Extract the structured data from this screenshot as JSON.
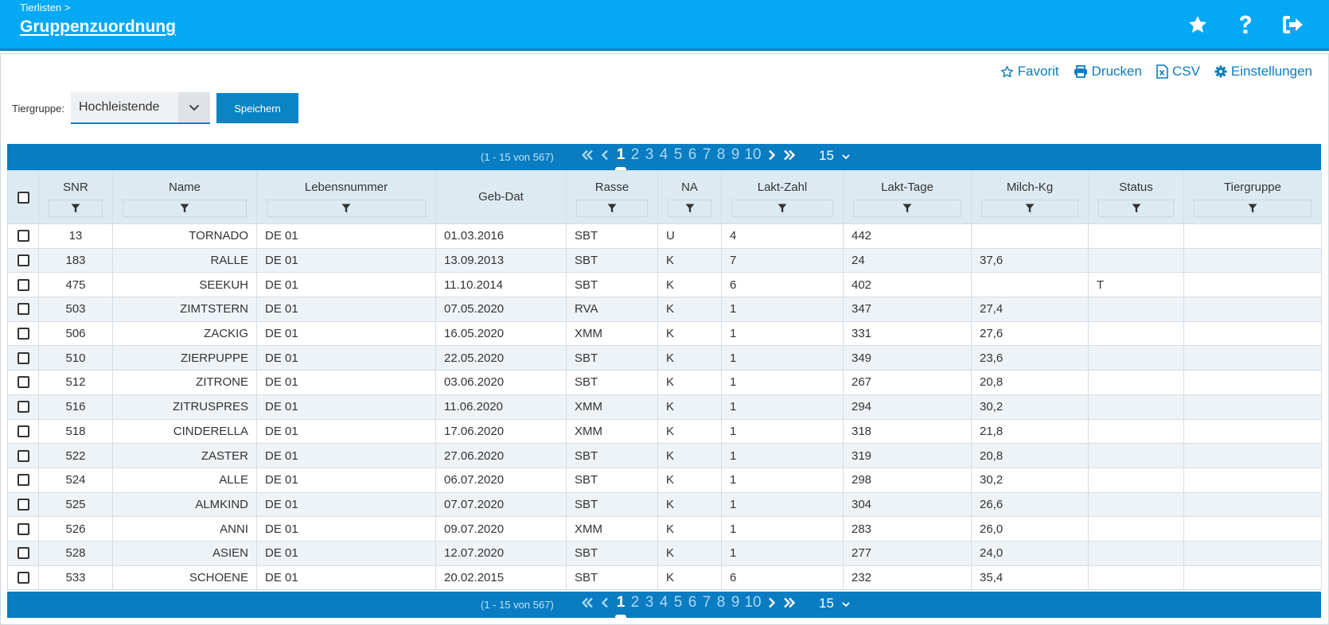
{
  "header": {
    "breadcrumb": "Tierlisten >",
    "title": "Gruppenzuordnung"
  },
  "toolbar": {
    "favorit": "Favorit",
    "drucken": "Drucken",
    "csv": "CSV",
    "einstellungen": "Einstellungen"
  },
  "filter": {
    "label": "Tiergruppe:",
    "selected": "Hochleistende",
    "save_label": "Speichern"
  },
  "pager": {
    "range": "(1 - 15 von 567)",
    "pages": [
      "1",
      "2",
      "3",
      "4",
      "5",
      "6",
      "7",
      "8",
      "9",
      "10"
    ],
    "current": "1",
    "page_size": "15"
  },
  "columns": [
    "SNR",
    "Name",
    "Lebensnummer",
    "Geb-Dat",
    "Rasse",
    "NA",
    "Lakt-Zahl",
    "Lakt-Tage",
    "Milch-Kg",
    "Status",
    "Tiergruppe"
  ],
  "rows": [
    [
      "13",
      "TORNADO",
      "DE 01",
      "01.03.2016",
      "SBT",
      "U",
      "4",
      "442",
      "",
      "",
      ""
    ],
    [
      "183",
      "RALLE",
      "DE 01",
      "13.09.2013",
      "SBT",
      "K",
      "7",
      "24",
      "37,6",
      "",
      ""
    ],
    [
      "475",
      "SEEKUH",
      "DE 01",
      "11.10.2014",
      "SBT",
      "K",
      "6",
      "402",
      "",
      "T",
      ""
    ],
    [
      "503",
      "ZIMTSTERN",
      "DE 01",
      "07.05.2020",
      "RVA",
      "K",
      "1",
      "347",
      "27,4",
      "",
      ""
    ],
    [
      "506",
      "ZACKIG",
      "DE 01",
      "16.05.2020",
      "XMM",
      "K",
      "1",
      "331",
      "27,6",
      "",
      ""
    ],
    [
      "510",
      "ZIERPUPPE",
      "DE 01",
      "22.05.2020",
      "SBT",
      "K",
      "1",
      "349",
      "23,6",
      "",
      ""
    ],
    [
      "512",
      "ZITRONE",
      "DE 01",
      "03.06.2020",
      "SBT",
      "K",
      "1",
      "267",
      "20,8",
      "",
      ""
    ],
    [
      "516",
      "ZITRUSPRES",
      "DE 01",
      "11.06.2020",
      "XMM",
      "K",
      "1",
      "294",
      "30,2",
      "",
      ""
    ],
    [
      "518",
      "CINDERELLA",
      "DE 01",
      "17.06.2020",
      "XMM",
      "K",
      "1",
      "318",
      "21,8",
      "",
      ""
    ],
    [
      "522",
      "ZASTER",
      "DE 01",
      "27.06.2020",
      "SBT",
      "K",
      "1",
      "319",
      "20,8",
      "",
      ""
    ],
    [
      "524",
      "ALLE",
      "DE 01",
      "06.07.2020",
      "SBT",
      "K",
      "1",
      "298",
      "30,2",
      "",
      ""
    ],
    [
      "525",
      "ALMKIND",
      "DE 01",
      "07.07.2020",
      "SBT",
      "K",
      "1",
      "304",
      "26,6",
      "",
      ""
    ],
    [
      "526",
      "ANNI",
      "DE 01",
      "09.07.2020",
      "XMM",
      "K",
      "1",
      "283",
      "26,0",
      "",
      ""
    ],
    [
      "528",
      "ASIEN",
      "DE 01",
      "12.07.2020",
      "SBT",
      "K",
      "1",
      "277",
      "24,0",
      "",
      ""
    ],
    [
      "533",
      "SCHOENE",
      "DE 01",
      "20.02.2015",
      "SBT",
      "K",
      "6",
      "232",
      "35,4",
      "",
      ""
    ]
  ],
  "colors": {
    "header_bg": "#03a9f4",
    "pager_bg": "#0a7cc1",
    "link": "#0a7cc1"
  }
}
